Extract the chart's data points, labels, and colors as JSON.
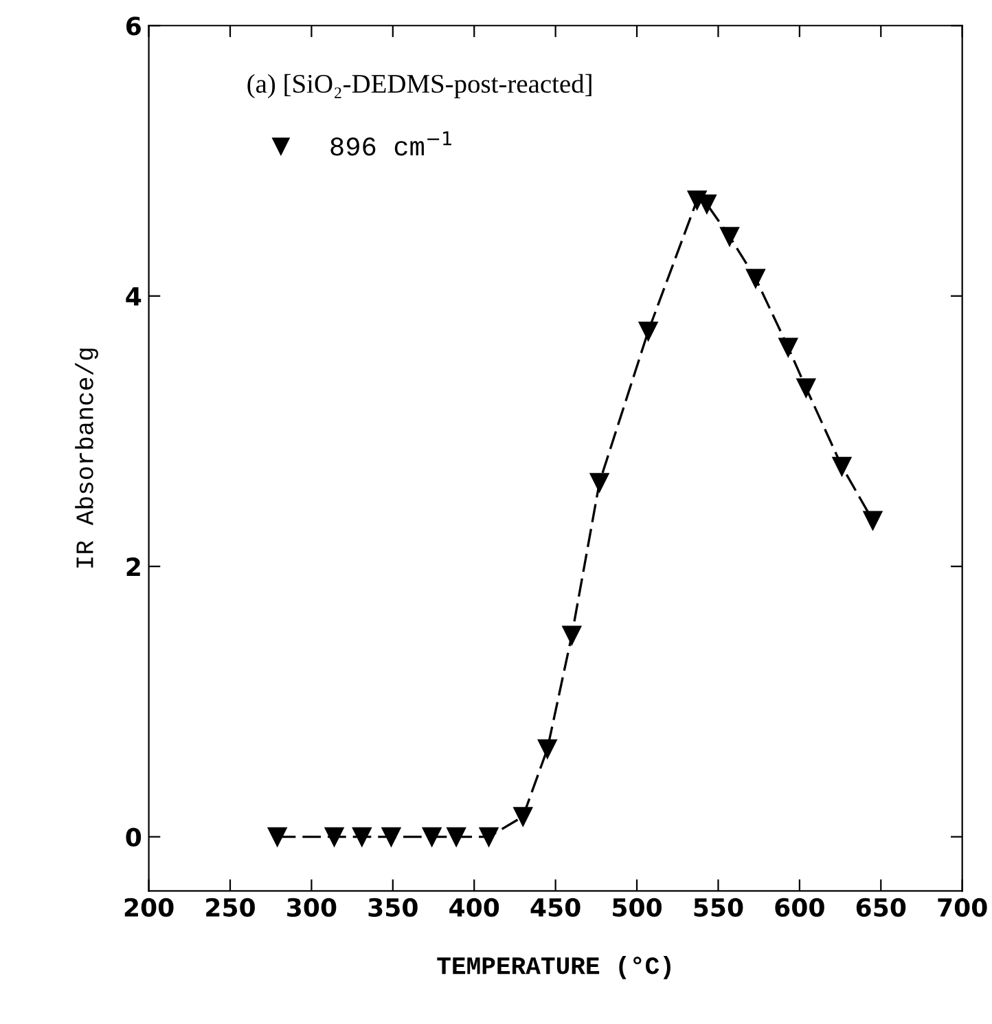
{
  "chart_data": {
    "type": "line",
    "title": "(a) [SiO₂-DEDMS-post-reacted]",
    "xlabel": "TEMPERATURE (°C)",
    "ylabel": "IR Absorbance/g",
    "series": [
      {
        "name": "896 cm$^{−1}$",
        "color": "#000000",
        "x": [
          279,
          314,
          331,
          349,
          374,
          389,
          409,
          430,
          445,
          460,
          477,
          507,
          537,
          543,
          557,
          573,
          593,
          604,
          626,
          645
        ],
        "values": [
          0,
          0,
          0,
          0,
          0,
          0,
          0,
          0.15,
          0.65,
          1.49,
          2.62,
          3.74,
          4.71,
          4.68,
          4.44,
          4.13,
          3.62,
          3.32,
          2.74,
          2.34
        ]
      }
    ],
    "xlim": [
      200,
      700
    ],
    "ylim": [
      -0.4,
      6
    ],
    "xticks": [
      200,
      250,
      300,
      350,
      400,
      450,
      500,
      550,
      600,
      650,
      700
    ],
    "yticks": [
      0,
      2,
      4,
      6
    ],
    "marker": "triangle",
    "line_style": "dashed",
    "legend": "top left",
    "grid": false
  }
}
